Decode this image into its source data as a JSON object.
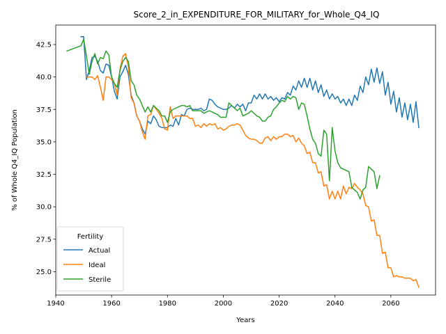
{
  "chart_data": {
    "type": "line",
    "title": "Score_2_in_EXPENDITURE_FOR_MILITARY_for_Whole_Q4_IQ",
    "xlabel": "Years",
    "ylabel": "% of Whole Q4_IQ Population",
    "xlim": [
      1940,
      2076
    ],
    "ylim": [
      23.2,
      44.0
    ],
    "xticks": [
      1940,
      1960,
      1980,
      2000,
      2020,
      2040,
      2060
    ],
    "yticks": [
      25.0,
      27.5,
      30.0,
      32.5,
      35.0,
      37.5,
      40.0,
      42.5
    ],
    "grid": false,
    "legend": {
      "title": "Fertility",
      "placement": "lower-left"
    },
    "series": [
      {
        "name": "Actual",
        "color": "#1f77b4",
        "x": [
          1949,
          1950,
          1951,
          1952,
          1953,
          1954,
          1955,
          1956,
          1957,
          1958,
          1959,
          1960,
          1961,
          1962,
          1963,
          1964,
          1965,
          1966,
          1967,
          1968,
          1969,
          1970,
          1971,
          1972,
          1973,
          1974,
          1975,
          1976,
          1977,
          1978,
          1979,
          1980,
          1981,
          1982,
          1983,
          1984,
          1985,
          1986,
          1987,
          1988,
          1989,
          1990,
          1991,
          1992,
          1993,
          1994,
          1995,
          1996,
          1997,
          1998,
          1999,
          2000,
          2001,
          2002,
          2003,
          2004,
          2005,
          2006,
          2007,
          2008,
          2009,
          2010,
          2011,
          2012,
          2013,
          2014,
          2015,
          2016,
          2017,
          2018,
          2019,
          2020,
          2021,
          2022,
          2023,
          2024,
          2025,
          2026,
          2027,
          2028,
          2029,
          2030,
          2031,
          2032,
          2033,
          2034,
          2035,
          2036,
          2037,
          2038,
          2039,
          2040,
          2041,
          2042,
          2043,
          2044,
          2045,
          2046,
          2047,
          2048,
          2049,
          2050,
          2051,
          2052,
          2053,
          2054,
          2055,
          2056,
          2057,
          2058,
          2059,
          2060,
          2061,
          2062,
          2063,
          2064,
          2065,
          2066,
          2067,
          2068,
          2069,
          2070
        ],
        "y": [
          43.1,
          43.1,
          39.8,
          40.5,
          41.5,
          41.6,
          41.2,
          40.5,
          40.3,
          41.0,
          40.9,
          40.0,
          38.9,
          38.3,
          40.0,
          40.4,
          40.9,
          40.2,
          38.6,
          38.0,
          37.0,
          36.6,
          36.0,
          35.6,
          36.6,
          36.4,
          37.0,
          36.7,
          36.2,
          36.1,
          36.1,
          36.1,
          36.3,
          36.2,
          36.8,
          36.3,
          37.1,
          37.0,
          37.5,
          37.6,
          37.5,
          37.5,
          37.5,
          37.6,
          37.4,
          37.5,
          38.3,
          38.2,
          37.9,
          37.7,
          37.6,
          37.5,
          37.5,
          37.6,
          37.8,
          37.6,
          37.9,
          37.7,
          37.9,
          37.4,
          38.0,
          38.0,
          38.6,
          38.3,
          38.7,
          38.3,
          38.7,
          38.3,
          38.5,
          38.2,
          38.4,
          38.1,
          38.4,
          38.3,
          38.8,
          38.6,
          39.3,
          39.0,
          39.7,
          39.2,
          39.9,
          39.2,
          39.9,
          39.0,
          39.7,
          38.8,
          39.4,
          38.5,
          39.0,
          38.3,
          38.7,
          38.3,
          38.5,
          38.0,
          38.3,
          37.8,
          38.3,
          37.8,
          38.6,
          38.2,
          39.3,
          38.8,
          40.0,
          39.4,
          40.6,
          39.6,
          40.7,
          39.5,
          40.4,
          38.6,
          39.6,
          37.9,
          38.9,
          37.3,
          38.4,
          36.9,
          38.0,
          36.7,
          37.9,
          36.5,
          38.1,
          36.1
        ]
      },
      {
        "name": "Ideal",
        "color": "#ff7f0e",
        "x": [
          1951,
          1952,
          1953,
          1954,
          1955,
          1956,
          1957,
          1958,
          1959,
          1960,
          1961,
          1962,
          1963,
          1964,
          1965,
          1966,
          1967,
          1968,
          1969,
          1970,
          1971,
          1972,
          1973,
          1974,
          1975,
          1976,
          1977,
          1978,
          1979,
          1980,
          1981,
          1982,
          1983,
          1984,
          1985,
          1986,
          1987,
          1988,
          1989,
          1990,
          1991,
          1992,
          1993,
          1994,
          1995,
          1996,
          1997,
          1998,
          1999,
          2000,
          2001,
          2002,
          2003,
          2004,
          2005,
          2006,
          2007,
          2008,
          2009,
          2010,
          2011,
          2012,
          2013,
          2014,
          2015,
          2016,
          2017,
          2018,
          2019,
          2020,
          2021,
          2022,
          2023,
          2024,
          2025,
          2026,
          2027,
          2028,
          2029,
          2030,
          2031,
          2032,
          2033,
          2034,
          2035,
          2036,
          2037,
          2038,
          2039,
          2040,
          2041,
          2042,
          2043,
          2044,
          2045,
          2046,
          2047,
          2048,
          2049,
          2050,
          2051,
          2052,
          2053,
          2054,
          2055,
          2056,
          2057,
          2058,
          2059,
          2060,
          2061,
          2062,
          2063,
          2064,
          2065,
          2066,
          2067,
          2068,
          2069,
          2070
        ],
        "y": [
          40.0,
          40.0,
          40.0,
          39.8,
          40.1,
          39.2,
          38.2,
          40.0,
          40.0,
          39.8,
          39.5,
          38.6,
          40.6,
          41.6,
          41.8,
          40.8,
          38.4,
          38.0,
          37.0,
          36.6,
          35.8,
          35.2,
          37.0,
          37.1,
          37.8,
          37.5,
          37.2,
          36.8,
          36.0,
          35.9,
          37.7,
          36.8,
          37.0,
          37.0,
          37.0,
          37.0,
          37.0,
          36.8,
          36.8,
          36.2,
          36.3,
          36.1,
          36.4,
          36.2,
          36.4,
          36.3,
          36.4,
          36.0,
          36.1,
          35.9,
          36.0,
          36.2,
          36.3,
          36.3,
          36.4,
          36.3,
          35.9,
          35.5,
          35.3,
          35.2,
          35.2,
          35.1,
          34.9,
          34.9,
          35.3,
          35.4,
          35.1,
          35.4,
          35.2,
          35.4,
          35.4,
          35.6,
          35.6,
          35.4,
          35.5,
          35.0,
          35.3,
          34.9,
          34.7,
          34.1,
          34.2,
          33.4,
          33.4,
          32.6,
          32.7,
          31.6,
          31.7,
          30.6,
          31.2,
          30.6,
          31.2,
          30.6,
          31.6,
          31.0,
          31.5,
          31.4,
          31.8,
          31.5,
          31.3,
          31.0,
          30.1,
          30.0,
          28.9,
          29.0,
          27.8,
          27.8,
          26.4,
          26.5,
          25.3,
          25.3,
          24.6,
          24.7,
          24.6,
          24.6,
          24.5,
          24.5,
          24.5,
          24.3,
          24.4,
          23.8
        ]
      },
      {
        "name": "Sterile",
        "color": "#2ca02c",
        "x": [
          1944,
          1949,
          1950,
          1951,
          1952,
          1953,
          1954,
          1955,
          1956,
          1957,
          1958,
          1959,
          1960,
          1961,
          1962,
          1963,
          1964,
          1965,
          1966,
          1967,
          1968,
          1969,
          1970,
          1971,
          1972,
          1973,
          1974,
          1975,
          1976,
          1977,
          1978,
          1979,
          1980,
          1981,
          1982,
          1983,
          1984,
          1985,
          1986,
          1987,
          1988,
          1989,
          1990,
          1991,
          1992,
          1993,
          1994,
          1995,
          1996,
          1997,
          1998,
          1999,
          2000,
          2001,
          2002,
          2003,
          2004,
          2005,
          2006,
          2007,
          2008,
          2009,
          2010,
          2011,
          2012,
          2013,
          2014,
          2015,
          2016,
          2017,
          2018,
          2019,
          2020,
          2021,
          2022,
          2023,
          2024,
          2025,
          2026,
          2027,
          2028,
          2029,
          2030,
          2031,
          2032,
          2033,
          2034,
          2035,
          2036,
          2037,
          2038,
          2039,
          2040,
          2041,
          2042,
          2043,
          2044,
          2045,
          2046,
          2047,
          2048,
          2049,
          2050,
          2051,
          2052,
          2053,
          2054,
          2055,
          2056
        ],
        "y": [
          42.0,
          42.4,
          42.9,
          41.6,
          40.2,
          41.2,
          41.8,
          41.0,
          41.5,
          41.4,
          42.0,
          41.7,
          40.0,
          39.5,
          39.2,
          40.5,
          41.2,
          41.5,
          41.2,
          39.7,
          39.4,
          38.6,
          38.3,
          37.8,
          37.3,
          37.7,
          37.3,
          37.8,
          37.6,
          37.4,
          37.0,
          37.0,
          36.5,
          37.3,
          37.5,
          37.6,
          37.7,
          37.8,
          37.8,
          37.7,
          37.8,
          37.4,
          37.4,
          37.4,
          37.4,
          37.2,
          37.3,
          37.4,
          37.3,
          37.2,
          37.1,
          36.9,
          36.9,
          36.9,
          38.0,
          37.8,
          37.6,
          37.4,
          37.6,
          37.0,
          37.1,
          37.2,
          37.4,
          37.2,
          37.0,
          36.9,
          36.6,
          36.6,
          36.9,
          37.0,
          37.5,
          37.7,
          38.0,
          38.2,
          38.1,
          38.5,
          38.3,
          38.5,
          38.4,
          37.5,
          38.0,
          37.9,
          37.0,
          36.0,
          35.2,
          34.9,
          34.1,
          33.9,
          35.9,
          35.6,
          32.0,
          36.1,
          34.3,
          33.4,
          33.0,
          32.9,
          32.8,
          32.7,
          31.5,
          31.3,
          31.1,
          30.6,
          31.3,
          31.5,
          33.1,
          32.9,
          32.7,
          31.4,
          32.4
        ]
      }
    ]
  }
}
